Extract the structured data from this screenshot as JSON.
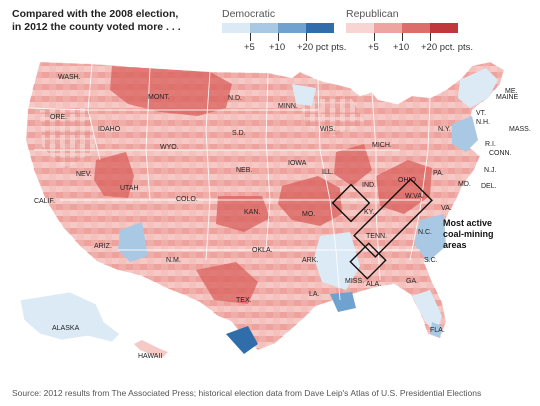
{
  "headline": {
    "line1": "Compared with the 2008 election,",
    "line2": "in 2012 the county voted more . . ."
  },
  "legend": {
    "democratic": {
      "title": "Democratic",
      "swatches": [
        "#dceaf6",
        "#a9c8e4",
        "#6fa2cf",
        "#2f6eaa"
      ],
      "ticks": [
        "+5",
        "+10",
        "+20 pct pts."
      ]
    },
    "republican": {
      "title": "Republican",
      "swatches": [
        "#f7d5d2",
        "#eea5a1",
        "#dd6d6a",
        "#c0383c"
      ],
      "ticks": [
        "+5",
        "+10",
        "+20 pct. pts."
      ]
    }
  },
  "map": {
    "state_labels": [
      "WASH.",
      "ORE.",
      "IDAHO",
      "MONT.",
      "WYO.",
      "N.D.",
      "S.D.",
      "NEB.",
      "MINN.",
      "IOWA",
      "WIS.",
      "MICH.",
      "ILL.",
      "IND.",
      "OHIO",
      "PA.",
      "N.Y.",
      "VT.",
      "N.H.",
      "MAINE",
      "ME.",
      "MASS.",
      "R.I.",
      "CONN.",
      "N.J.",
      "DEL.",
      "MD.",
      "VA.",
      "W.VA.",
      "KY.",
      "TENN.",
      "N.C.",
      "S.C.",
      "GA.",
      "FLA.",
      "ALA.",
      "MISS.",
      "LA.",
      "ARK.",
      "MO.",
      "KAN.",
      "COLO.",
      "UTAH",
      "NEV.",
      "CALIF.",
      "ARIZ.",
      "N.M.",
      "OKLA.",
      "TEX.",
      "ALASKA",
      "HAWAII"
    ],
    "annotation": {
      "line1": "Most active",
      "line2": "coal-mining",
      "line3": "areas"
    }
  },
  "source": "Source: 2012 results from The Associated Press; historical election data from Dave Leip's Atlas of U.S. Presidential Elections"
}
